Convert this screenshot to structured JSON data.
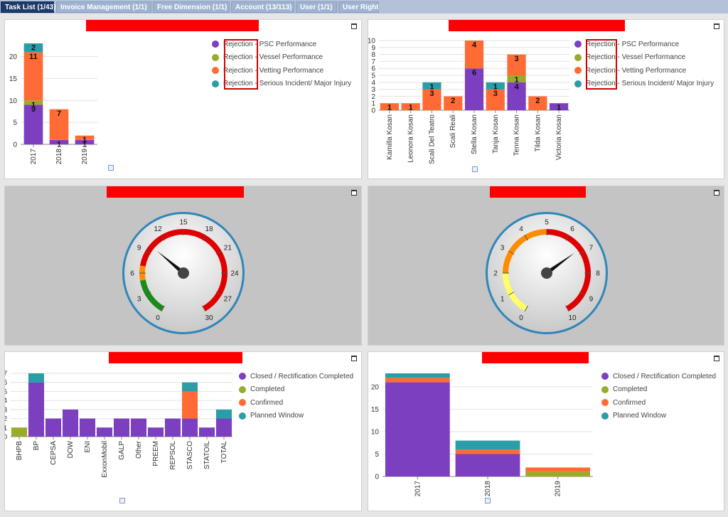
{
  "tabs": [
    {
      "label": "Task List (1/43)",
      "active": true
    },
    {
      "label": "Invoice Management (1/1)",
      "active": false
    },
    {
      "label": "Free Dimension (1/1)",
      "active": false
    },
    {
      "label": "Account (13/113)",
      "active": false
    },
    {
      "label": "User (1/1)",
      "active": false
    },
    {
      "label": "User Right",
      "active": false
    }
  ],
  "colors": {
    "purple": "#7b3fbf",
    "olive": "#9aab2a",
    "orange": "#ff6b35",
    "teal": "#2a9da8",
    "redbar": "#ff0000"
  },
  "legend_rejection": [
    {
      "label": "Rejection - PSC Performance",
      "color": "#7b3fbf"
    },
    {
      "label": "Rejection - Vessel Performance",
      "color": "#9aab2a"
    },
    {
      "label": "Rejection - Vetting Performance",
      "color": "#ff6b35"
    },
    {
      "label": "Rejection - Serious Incident/ Major Injury",
      "color": "#2a9da8"
    }
  ],
  "legend_status": [
    {
      "label": "Closed / Rectification Completed",
      "color": "#7b3fbf"
    },
    {
      "label": "Completed",
      "color": "#9aab2a"
    },
    {
      "label": "Confirmed",
      "color": "#ff6b35"
    },
    {
      "label": "Planned Window",
      "color": "#2a9da8"
    }
  ],
  "chart_data": [
    {
      "type": "bar",
      "stacked": true,
      "categories": [
        "2017",
        "2018",
        "2019"
      ],
      "series": [
        {
          "name": "Rejection - PSC Performance",
          "values": [
            9,
            1,
            1
          ]
        },
        {
          "name": "Rejection - Vessel Performance",
          "values": [
            1,
            0,
            0
          ]
        },
        {
          "name": "Rejection - Vetting Performance",
          "values": [
            11,
            7,
            1
          ]
        },
        {
          "name": "Rejection - Serious Incident/ Major Injury",
          "values": [
            2,
            0,
            0
          ]
        }
      ],
      "ylim": [
        0,
        23
      ],
      "yticks": [
        0,
        5,
        10,
        15,
        20
      ],
      "grid": true,
      "legend": "right"
    },
    {
      "type": "bar",
      "stacked": true,
      "categories": [
        "Kamilla Kosan",
        "Leonora Kosan",
        "Scali Del Teatro",
        "Scali Reali",
        "Stella Kosan",
        "Tanja Kosan",
        "Tenna Kosan",
        "Tilda Kosan",
        "Victoria Kosan"
      ],
      "series": [
        {
          "name": "Rejection - PSC Performance",
          "values": [
            0,
            0,
            0,
            0,
            6,
            0,
            4,
            0,
            1
          ]
        },
        {
          "name": "Rejection - Vessel Performance",
          "values": [
            0,
            0,
            0,
            0,
            0,
            0,
            1,
            0,
            0
          ]
        },
        {
          "name": "Rejection - Vetting Performance",
          "values": [
            1,
            1,
            3,
            2,
            4,
            3,
            3,
            2,
            0
          ]
        },
        {
          "name": "Rejection - Serious Incident/ Major Injury",
          "values": [
            0,
            0,
            1,
            0,
            0,
            1,
            0,
            0,
            0
          ]
        }
      ],
      "ylim": [
        0,
        10
      ],
      "yticks": [
        0,
        1,
        2,
        3,
        4,
        5,
        6,
        7,
        8,
        9,
        10
      ],
      "grid": true,
      "legend": "right"
    },
    {
      "type": "gauge",
      "min": 0,
      "max": 30,
      "ticks": [
        0,
        3,
        6,
        9,
        12,
        15,
        18,
        21,
        24,
        27,
        30
      ],
      "bands": [
        {
          "from": 0,
          "to": 5,
          "color": "green"
        },
        {
          "from": 5,
          "to": 7,
          "color": "orange"
        },
        {
          "from": 7,
          "to": 30,
          "color": "red"
        }
      ],
      "value": 10
    },
    {
      "type": "gauge",
      "min": 0,
      "max": 10,
      "ticks": [
        0,
        1,
        2,
        3,
        4,
        5,
        6,
        7,
        8,
        9,
        10
      ],
      "bands": [
        {
          "from": 0,
          "to": 2,
          "color": "yellow"
        },
        {
          "from": 2,
          "to": 5,
          "color": "orange"
        },
        {
          "from": 5,
          "to": 10,
          "color": "red"
        }
      ],
      "value": 6.8
    },
    {
      "type": "bar",
      "stacked": true,
      "categories": [
        "BHPB",
        "BP",
        "CEPSA",
        "DOW",
        "ENI",
        "ExxonMobil",
        "GALP",
        "Other",
        "PREEM",
        "REPSOL",
        "STASCO",
        "STATOIL",
        "TOTAL"
      ],
      "series": [
        {
          "name": "Closed / Rectification Completed",
          "values": [
            0,
            6,
            2,
            3,
            2,
            1,
            2,
            2,
            1,
            2,
            2,
            1,
            2
          ]
        },
        {
          "name": "Completed",
          "values": [
            1,
            0,
            0,
            0,
            0,
            0,
            0,
            0,
            0,
            0,
            0,
            0,
            0
          ]
        },
        {
          "name": "Confirmed",
          "values": [
            0,
            0,
            0,
            0,
            0,
            0,
            0,
            0,
            0,
            0,
            3,
            0,
            0
          ]
        },
        {
          "name": "Planned Window",
          "values": [
            0,
            1,
            0,
            0,
            0,
            0,
            0,
            0,
            0,
            0,
            1,
            0,
            1
          ]
        }
      ],
      "ylim": [
        0,
        7
      ],
      "yticks": [
        0,
        1,
        2,
        3,
        4,
        5,
        6,
        7
      ],
      "grid": true,
      "legend": "right"
    },
    {
      "type": "bar",
      "stacked": true,
      "categories": [
        "2017",
        "2018",
        "2019"
      ],
      "series": [
        {
          "name": "Closed / Rectification Completed",
          "values": [
            21,
            5,
            0
          ]
        },
        {
          "name": "Completed",
          "values": [
            0,
            0,
            1
          ]
        },
        {
          "name": "Confirmed",
          "values": [
            1,
            1,
            1
          ]
        },
        {
          "name": "Planned Window",
          "values": [
            1,
            2,
            0
          ]
        }
      ],
      "ylim": [
        0,
        23
      ],
      "yticks": [
        0,
        5,
        10,
        15,
        20
      ],
      "grid": true,
      "legend": "right"
    }
  ]
}
